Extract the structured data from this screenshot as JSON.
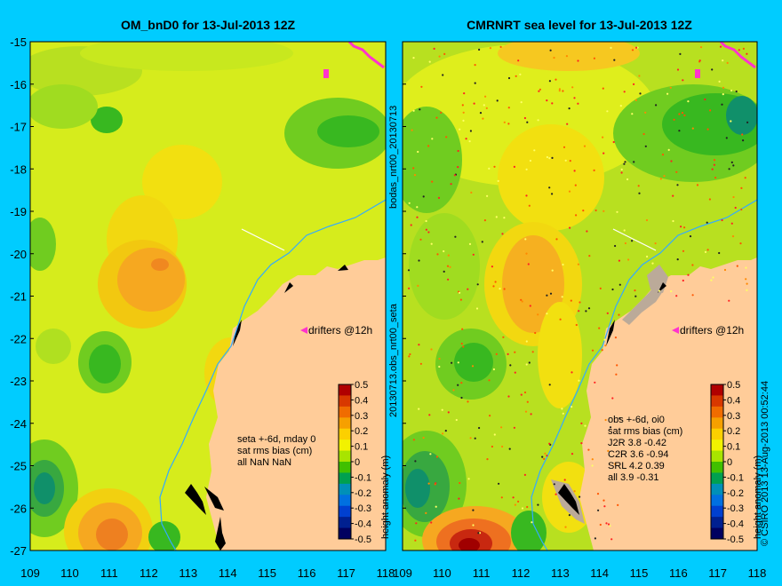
{
  "left_panel": {
    "title": "OM_bnD0 for 13-Jul-2013 12Z",
    "drifters_label": "drifters @12h",
    "stats_lines": [
      "seta +-6d, mday 0",
      "sat rms bias (cm)",
      "all NaN NaN"
    ]
  },
  "right_panel": {
    "title": "CMRNRT sea level  for 13-Jul-2013 12Z",
    "drifters_label": "drifters @12h",
    "stats_lines": [
      "obs +-6d, oi0",
      "sat rms bias (cm)",
      "J2R   3.8 -0.42",
      "C2R   3.6 -0.94",
      "SRL   4.2 0.39",
      "all   3.9 -0.31"
    ]
  },
  "y_ticks": [
    "-15",
    "-16",
    "-17",
    "-18",
    "-19",
    "-20",
    "-21",
    "-22",
    "-23",
    "-24",
    "-25",
    "-26",
    "-27"
  ],
  "x_ticks": [
    "109",
    "110",
    "111",
    "112",
    "113",
    "114",
    "115",
    "116",
    "117",
    "118"
  ],
  "vertical_text_1": "bodas_nrt00_20130713",
  "vertical_text_2": "20130713.obs_nrt00_seta",
  "copyright": "© CSIRO 2013   13-Aug-2013 00:52:44",
  "colorbar": {
    "label": "height anomaly (m)",
    "ticks": [
      "0.5",
      "0.4",
      "0.3",
      "0.2",
      "0.1",
      "0",
      "-0.1",
      "-0.2",
      "-0.3",
      "-0.4",
      "-0.5"
    ],
    "colors": [
      "#b00000",
      "#d83800",
      "#f06c00",
      "#f6a000",
      "#fcd000",
      "#f2f200",
      "#a8e400",
      "#40c000",
      "#00a050",
      "#0090b8",
      "#0070e0",
      "#0040d0",
      "#002090",
      "#000060"
    ]
  },
  "colors": {
    "background": "#00ccff",
    "land": "#ffcc99",
    "coast_shelf": "#bbaa99",
    "bathymetry_line": "#33aaff",
    "drifter": "#ff33cc"
  }
}
